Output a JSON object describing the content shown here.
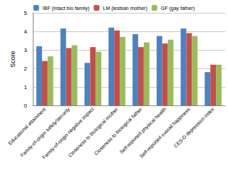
{
  "chart_data": {
    "type": "bar",
    "y_label": "Score",
    "categories": [
      "Educational attainment",
      "Family-of-origin safety/security",
      "Family-of-origin negative impact",
      "Closeness to biological mother",
      "Closeness to biological father",
      "Self-reported physical health",
      "Self-reported overall happiness",
      "CES-D depression index"
    ],
    "series": [
      {
        "name": "IBF (intact bio family)",
        "color": "#4f81bd",
        "values": [
          3.2,
          4.15,
          2.3,
          4.2,
          3.85,
          3.75,
          4.15,
          1.8
        ]
      },
      {
        "name": "LM (lesbian mother)",
        "color": "#c0504d",
        "values": [
          2.4,
          3.1,
          3.15,
          4.05,
          3.15,
          3.35,
          3.9,
          2.2
        ]
      },
      {
        "name": "GF (gay father)",
        "color": "#9bbb59",
        "values": [
          2.65,
          3.25,
          2.9,
          3.7,
          3.4,
          3.55,
          3.75,
          2.2
        ]
      }
    ],
    "ylim": [
      0,
      5
    ],
    "yticks": [
      0,
      1,
      2,
      3,
      4,
      5
    ],
    "grid": true,
    "legend": "top"
  }
}
